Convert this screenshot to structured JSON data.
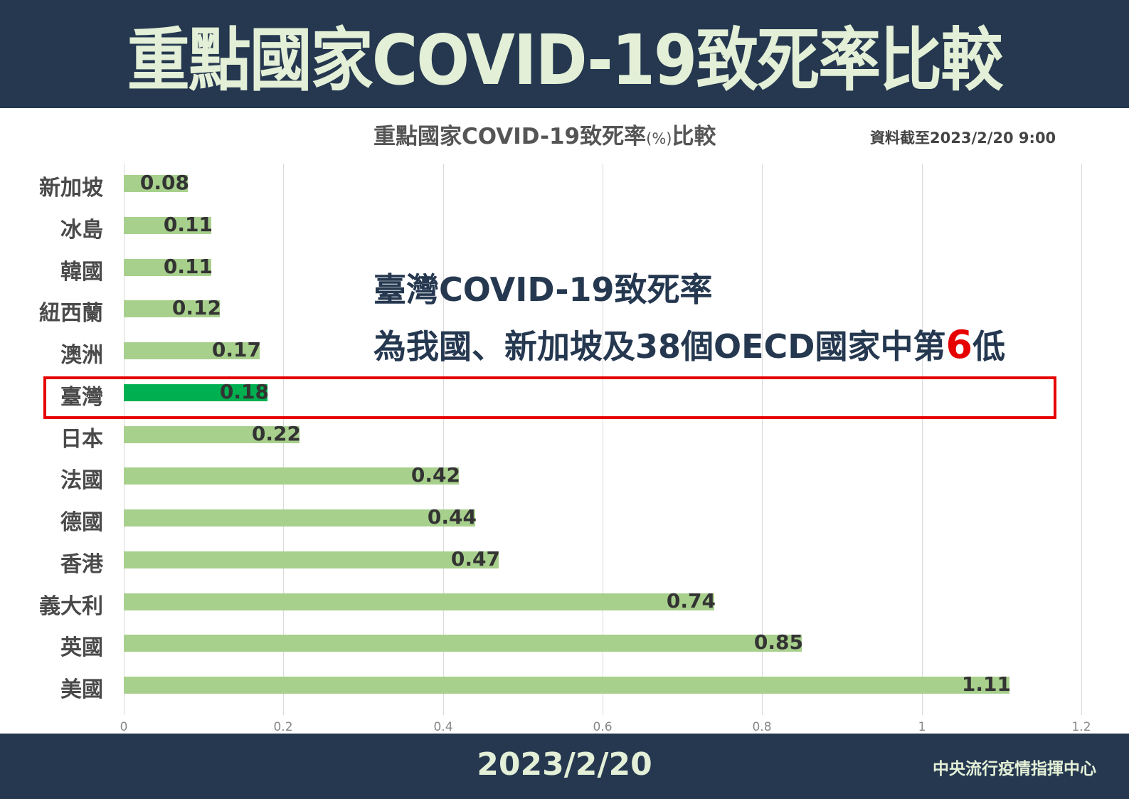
{
  "header": {
    "title": "重點國家COVID-19致死率比較"
  },
  "chart_header": {
    "title_main": "重點國家COVID-19致死率",
    "title_unit": "(%)",
    "title_suffix": "比較",
    "as_of": "資料截至2023/2/20 9:00"
  },
  "callout": {
    "line1": "臺灣COVID-19致死率",
    "line2_prefix": "為我國、新加坡及38個OECD國家中第",
    "rank": "6",
    "line2_suffix": "低"
  },
  "footer": {
    "date": "2023/2/20",
    "org": "中央流行疫情指揮中心"
  },
  "colors": {
    "header_bg": "#253850",
    "header_text": "#e3efd6",
    "bar": "#a8d08d",
    "bar_highlight": "#00b050",
    "highlight_box": "#e60000"
  },
  "chart_data": {
    "type": "bar",
    "orientation": "horizontal",
    "title": "重點國家COVID-19致死率(%)比較",
    "xlabel": "",
    "ylabel": "",
    "xlim": [
      0,
      1.2
    ],
    "x_ticks": [
      "0",
      "0.2",
      "0.4",
      "0.6",
      "0.8",
      "1",
      "1.2"
    ],
    "grid": true,
    "legend": null,
    "categories": [
      "新加坡",
      "冰島",
      "韓國",
      "紐西蘭",
      "澳洲",
      "臺灣",
      "日本",
      "法國",
      "德國",
      "香港",
      "義大利",
      "英國",
      "美國"
    ],
    "values": [
      0.08,
      0.11,
      0.11,
      0.12,
      0.17,
      0.18,
      0.22,
      0.42,
      0.44,
      0.47,
      0.74,
      0.85,
      1.11
    ],
    "value_labels": [
      "0.08",
      "0.11",
      "0.11",
      "0.12",
      "0.17",
      "0.18",
      "0.22",
      "0.42",
      "0.44",
      "0.47",
      "0.74",
      "0.85",
      "1.11"
    ],
    "highlighted_category": "臺灣",
    "annotations": [
      "臺灣COVID-19致死率為我國、新加坡及38個OECD國家中第6低"
    ]
  }
}
